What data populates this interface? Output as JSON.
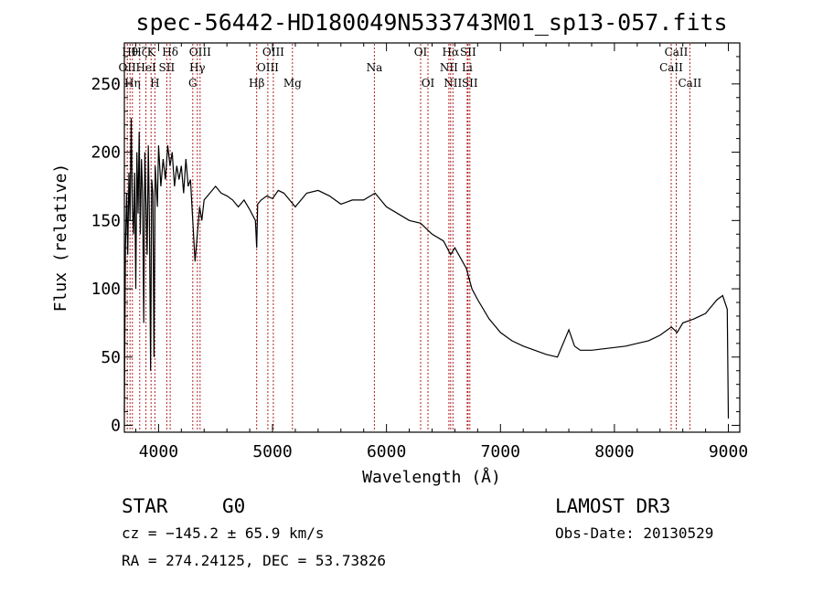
{
  "chart_data": {
    "type": "line",
    "title": "spec-56442-HD180049N533743M01_sp13-057.fits",
    "xlabel": "Wavelength (Å)",
    "ylabel": "Flux (relative)",
    "xlim": [
      3700,
      9100
    ],
    "ylim": [
      -5,
      280
    ],
    "xticks": [
      4000,
      5000,
      6000,
      7000,
      8000,
      9000
    ],
    "yticks": [
      0,
      50,
      100,
      150,
      200,
      250
    ],
    "xtick_labels": [
      "4000",
      "5000",
      "6000",
      "7000",
      "8000",
      "9000"
    ],
    "ytick_labels": [
      "0",
      "50",
      "100",
      "150",
      "200",
      "250"
    ],
    "series": [
      {
        "name": "flux",
        "x": [
          3700,
          3710,
          3720,
          3730,
          3740,
          3750,
          3760,
          3770,
          3780,
          3790,
          3800,
          3810,
          3820,
          3830,
          3840,
          3850,
          3860,
          3870,
          3880,
          3890,
          3900,
          3910,
          3920,
          3930,
          3940,
          3950,
          3960,
          3970,
          3980,
          3990,
          4000,
          4020,
          4040,
          4060,
          4080,
          4100,
          4120,
          4140,
          4160,
          4180,
          4200,
          4220,
          4240,
          4260,
          4280,
          4300,
          4320,
          4340,
          4360,
          4380,
          4400,
          4450,
          4500,
          4550,
          4600,
          4650,
          4700,
          4750,
          4800,
          4850,
          4861,
          4870,
          4900,
          4950,
          5000,
          5050,
          5100,
          5150,
          5200,
          5300,
          5400,
          5500,
          5600,
          5700,
          5800,
          5900,
          6000,
          6100,
          6200,
          6300,
          6400,
          6500,
          6563,
          6600,
          6700,
          6750,
          6800,
          6900,
          7000,
          7100,
          7200,
          7300,
          7400,
          7500,
          7600,
          7650,
          7700,
          7800,
          7900,
          8000,
          8100,
          8200,
          8300,
          8400,
          8500,
          8550,
          8600,
          8700,
          8800,
          8860,
          8900,
          8950,
          8990,
          9000
        ],
        "y": [
          10,
          130,
          170,
          125,
          185,
          150,
          225,
          160,
          140,
          185,
          100,
          200,
          155,
          215,
          140,
          195,
          170,
          75,
          200,
          160,
          125,
          205,
          150,
          40,
          180,
          170,
          50,
          190,
          175,
          160,
          205,
          175,
          195,
          180,
          205,
          190,
          200,
          175,
          190,
          180,
          190,
          170,
          195,
          175,
          180,
          150,
          120,
          140,
          160,
          150,
          165,
          170,
          175,
          170,
          168,
          165,
          160,
          165,
          158,
          150,
          130,
          162,
          165,
          168,
          166,
          172,
          170,
          165,
          160,
          170,
          172,
          168,
          162,
          165,
          165,
          170,
          160,
          155,
          150,
          148,
          140,
          135,
          125,
          130,
          115,
          100,
          92,
          78,
          68,
          62,
          58,
          55,
          52,
          50,
          70,
          58,
          55,
          55,
          56,
          57,
          58,
          60,
          62,
          66,
          72,
          68,
          75,
          78,
          82,
          88,
          92,
          95,
          85,
          5
        ]
      }
    ],
    "emission_lines": [
      {
        "x": 3726,
        "labels": [
          "OII"
        ],
        "rows": [
          2
        ]
      },
      {
        "x": 3750,
        "labels": [
          "Hθ"
        ],
        "rows": [
          1
        ]
      },
      {
        "x": 3771,
        "labels": [
          "Hη"
        ],
        "rows": [
          3
        ]
      },
      {
        "x": 3835,
        "labels": [
          "Hζ"
        ],
        "rows": [
          1
        ]
      },
      {
        "x": 3889,
        "labels": [
          "HeI"
        ],
        "rows": [
          2
        ]
      },
      {
        "x": 3934,
        "labels": [
          "K"
        ],
        "rows": [
          1
        ]
      },
      {
        "x": 3968,
        "labels": [
          "H"
        ],
        "rows": [
          3
        ]
      },
      {
        "x": 4072,
        "labels": [
          "SII"
        ],
        "rows": [
          2
        ]
      },
      {
        "x": 4102,
        "labels": [
          "Hδ"
        ],
        "rows": [
          1
        ]
      },
      {
        "x": 4300,
        "labels": [
          "G"
        ],
        "rows": [
          3
        ]
      },
      {
        "x": 4340,
        "labels": [
          "Hγ"
        ],
        "rows": [
          2
        ]
      },
      {
        "x": 4364,
        "labels": [
          "OIII"
        ],
        "rows": [
          1
        ]
      },
      {
        "x": 4861,
        "labels": [
          "Hβ"
        ],
        "rows": [
          3
        ]
      },
      {
        "x": 4959,
        "labels": [
          "OIII"
        ],
        "rows": [
          2
        ]
      },
      {
        "x": 5007,
        "labels": [
          "OIII"
        ],
        "rows": [
          1
        ]
      },
      {
        "x": 5175,
        "labels": [
          "Mg"
        ],
        "rows": [
          3
        ]
      },
      {
        "x": 5894,
        "labels": [
          "Na"
        ],
        "rows": [
          2
        ]
      },
      {
        "x": 6300,
        "labels": [
          "OI"
        ],
        "rows": [
          1
        ]
      },
      {
        "x": 6364,
        "labels": [
          "OI"
        ],
        "rows": [
          3
        ]
      },
      {
        "x": 6548,
        "labels": [
          "NII"
        ],
        "rows": [
          2
        ]
      },
      {
        "x": 6563,
        "labels": [
          "Hα"
        ],
        "rows": [
          1
        ]
      },
      {
        "x": 6583,
        "labels": [
          "NII"
        ],
        "rows": [
          3
        ]
      },
      {
        "x": 6708,
        "labels": [
          "Li"
        ],
        "rows": [
          2
        ]
      },
      {
        "x": 6716,
        "labels": [
          "SII"
        ],
        "rows": [
          1
        ]
      },
      {
        "x": 6731,
        "labels": [
          "SII"
        ],
        "rows": [
          3
        ]
      },
      {
        "x": 8498,
        "labels": [
          "CaII"
        ],
        "rows": [
          2
        ]
      },
      {
        "x": 8542,
        "labels": [
          "CaII"
        ],
        "rows": [
          1
        ]
      },
      {
        "x": 8662,
        "labels": [
          "CaII"
        ],
        "rows": [
          3
        ]
      }
    ]
  },
  "info": {
    "class": "STAR",
    "subclass": "G0",
    "survey": "LAMOST DR3",
    "cz": "cz = −145.2 ± 65.9 km/s",
    "obs_date": "Obs-Date: 20130529",
    "coords": "RA = 274.24125, DEC =  53.73826"
  },
  "colors": {
    "spectrum": "#000000",
    "line_marker": "#b22222",
    "axis": "#000000",
    "background": "#ffffff"
  }
}
